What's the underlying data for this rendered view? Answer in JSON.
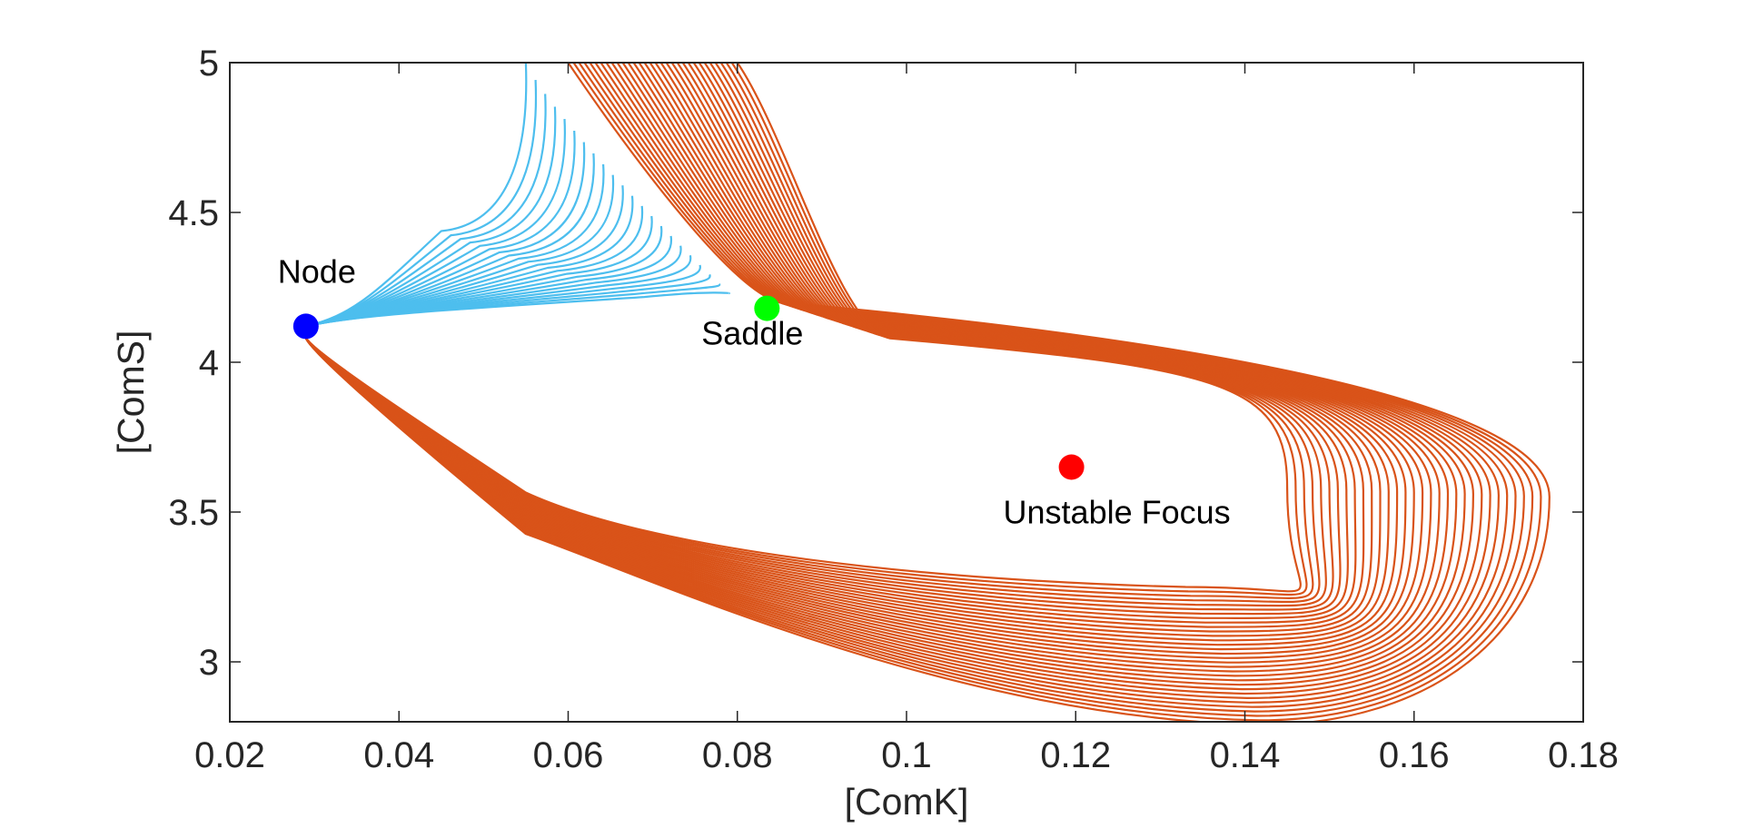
{
  "chart_data": {
    "type": "line",
    "title": "",
    "xlabel": "[ComK]",
    "ylabel": "[ComS]",
    "xlim": [
      0.02,
      0.18
    ],
    "ylim": [
      2.8,
      5
    ],
    "x_ticks": [
      "0.02",
      "0.04",
      "0.06",
      "0.08",
      "0.1",
      "0.12",
      "0.14",
      "0.16",
      "0.18"
    ],
    "x_tick_values": [
      0.02,
      0.04,
      0.06,
      0.08,
      0.1,
      0.12,
      0.14,
      0.16,
      0.18
    ],
    "y_ticks": [
      "3",
      "3.5",
      "4",
      "4.5",
      "5"
    ],
    "y_tick_values": [
      3,
      3.5,
      4,
      4.5,
      5
    ],
    "grid": false,
    "legend": "none",
    "colors": {
      "blue_trajectories": "#4DBEEE",
      "orange_trajectories": "#D95319",
      "node": "#0000FF",
      "saddle": "#00FF00",
      "focus": "#FF0000",
      "axes": "#262626"
    },
    "fixed_points": [
      {
        "label": "Node",
        "x": 0.029,
        "y": 4.12,
        "color": "#0000FF"
      },
      {
        "label": "Saddle",
        "x": 0.0835,
        "y": 4.18,
        "color": "#00FF00"
      },
      {
        "label": "Unstable Focus",
        "x": 0.1195,
        "y": 3.65,
        "color": "#FF0000"
      }
    ],
    "trajectory_families": [
      {
        "color": "#4DBEEE",
        "count": 22,
        "end": [
          0.029,
          4.12
        ],
        "start_x_range": [
          0.055,
          0.079
        ],
        "start_y_top": 5.0,
        "start_y_bottom": 4.23
      },
      {
        "color": "#D95319",
        "count": 32,
        "start_x_range": [
          0.06,
          0.08
        ],
        "start_y": 5.0,
        "pass_x_range": [
          0.085,
          0.098
        ],
        "pass_y_range": [
          4.08,
          4.2
        ],
        "right_turn_x_range": [
          0.145,
          0.176
        ],
        "bottom_y_range": [
          2.79,
          3.25
        ],
        "end": [
          0.029,
          4.09
        ]
      }
    ]
  }
}
